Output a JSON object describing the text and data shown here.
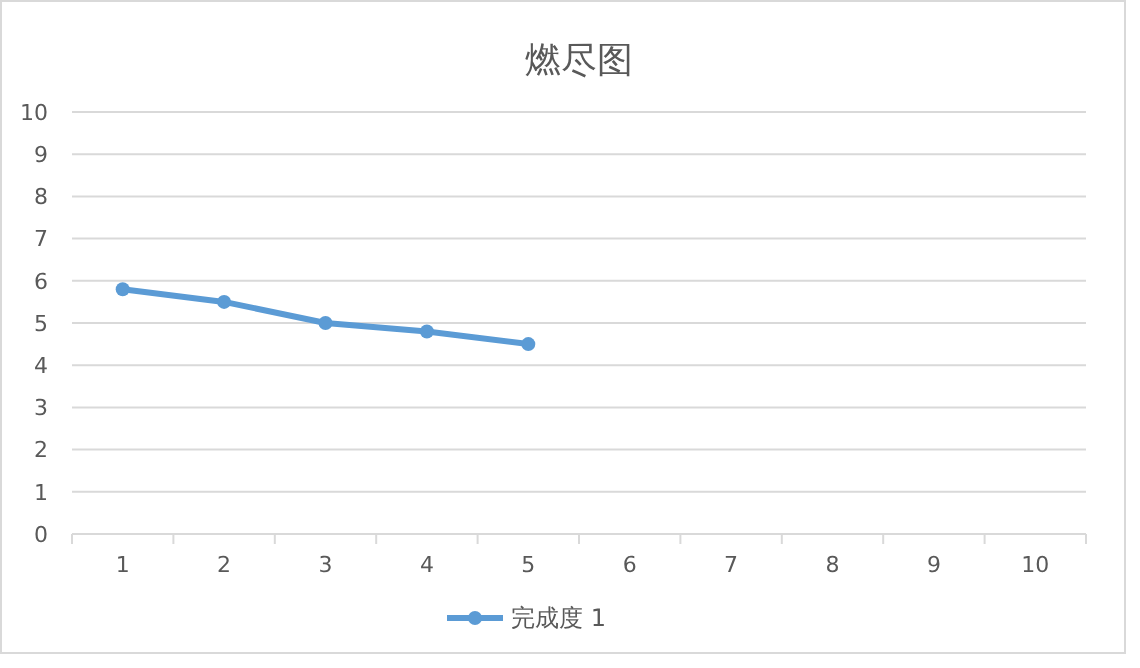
{
  "chart_data": {
    "type": "line",
    "title": "燃尽图",
    "categories": [
      "1",
      "2",
      "3",
      "4",
      "5",
      "6",
      "7",
      "8",
      "9",
      "10"
    ],
    "series": [
      {
        "name": "完成度 1",
        "color": "#5b9bd5",
        "values": [
          5.8,
          5.5,
          5.0,
          4.8,
          4.5,
          null,
          null,
          null,
          null,
          null
        ]
      }
    ],
    "ylim": [
      0,
      10
    ],
    "yticks": [
      0,
      1,
      2,
      3,
      4,
      5,
      6,
      7,
      8,
      9,
      10
    ],
    "grid": "y",
    "legend": "bottom",
    "marker": "circle"
  }
}
